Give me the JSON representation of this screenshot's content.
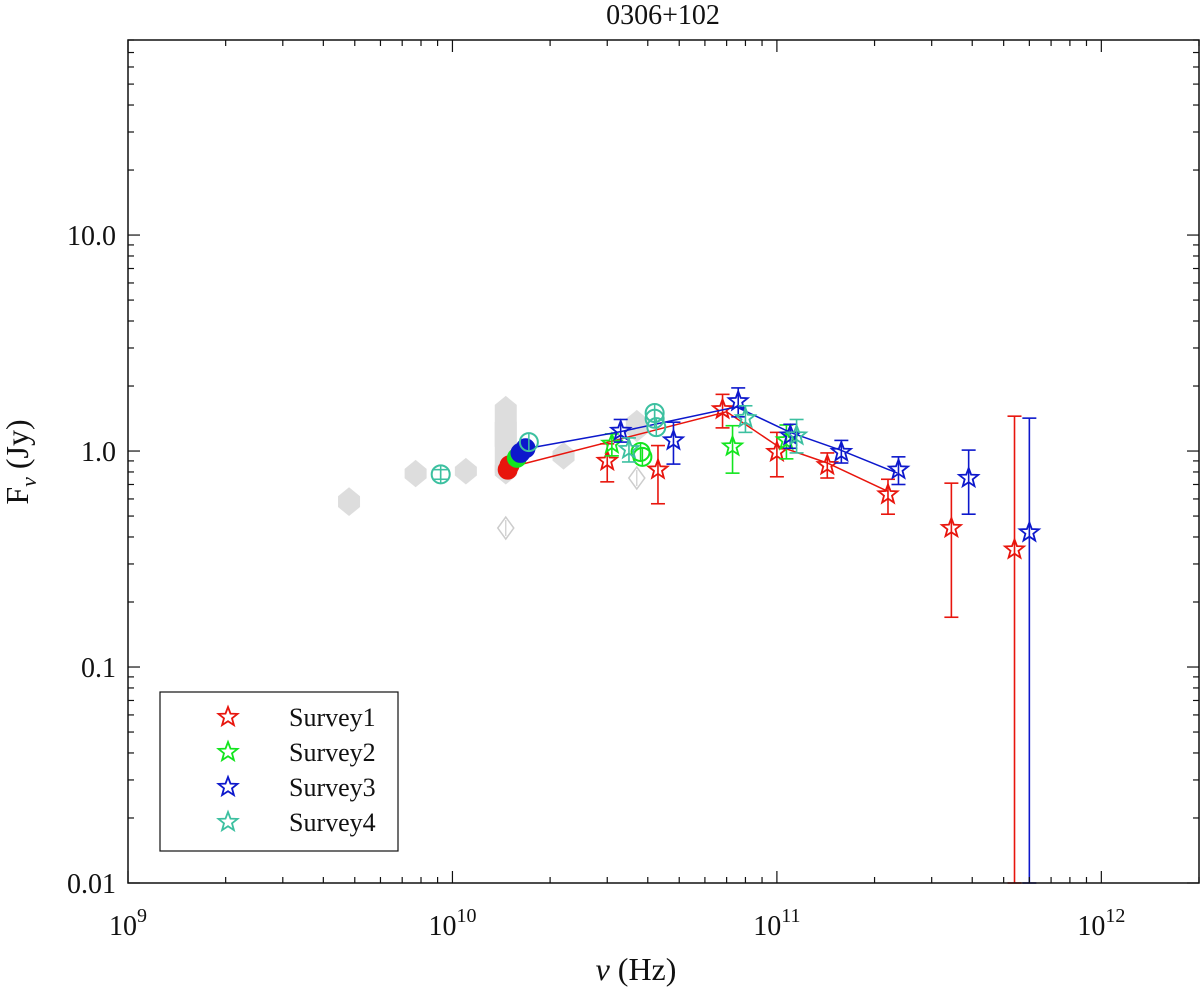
{
  "chart_data": {
    "type": "scatter",
    "title": "0306+102",
    "xlabel_sym": "ν",
    "xlabel_unit": " (Hz)",
    "ylabel_main": "F",
    "ylabel_sub": "ν",
    "ylabel_unit": " (Jy)",
    "xscale": "log",
    "yscale": "log",
    "xlim": [
      1000000000.0,
      2000000000000.0
    ],
    "ylim": [
      0.01,
      80
    ],
    "grid": false,
    "legend_position": "bottom-left",
    "x_ticks": [
      {
        "value": 1000000000.0,
        "base": "10",
        "exp": "9"
      },
      {
        "value": 10000000000.0,
        "base": "10",
        "exp": "10"
      },
      {
        "value": 100000000000.0,
        "base": "10",
        "exp": "11"
      },
      {
        "value": 1000000000000.0,
        "base": "10",
        "exp": "12"
      }
    ],
    "y_ticks": [
      {
        "value": 0.01,
        "label": "0.01"
      },
      {
        "value": 0.1,
        "label": "0.1"
      },
      {
        "value": 1,
        "label": "1.0"
      },
      {
        "value": 10,
        "label": "10.0"
      }
    ],
    "archival": {
      "color": "#dddddd",
      "filled": [
        {
          "x": 4800000000.0,
          "y": 0.6,
          "lo": 0.5,
          "hi": 0.68
        },
        {
          "x": 7700000000.0,
          "y": 0.79,
          "lo": 0.68,
          "hi": 0.91
        },
        {
          "x": 11000000000.0,
          "y": 0.81,
          "lo": 0.7,
          "hi": 0.93
        },
        {
          "x": 14600000000.0,
          "y": 0.98,
          "lo": 0.72,
          "hi": 1.8
        },
        {
          "x": 14600000000.0,
          "y": 1.2,
          "lo": 0.95,
          "hi": 1.5
        },
        {
          "x": 14600000000.0,
          "y": 0.82,
          "lo": 0.7,
          "hi": 0.95
        },
        {
          "x": 22000000000.0,
          "y": 0.97,
          "lo": 0.82,
          "hi": 1.1
        },
        {
          "x": 37000000000.0,
          "y": 1.3,
          "lo": 1.1,
          "hi": 1.55
        }
      ],
      "open": [
        {
          "x": 14600000000.0,
          "y": 0.44
        },
        {
          "x": 37000000000.0,
          "y": 0.75
        }
      ]
    },
    "series": [
      {
        "name": "Survey1",
        "color": "#e8150d",
        "line": [
          [
            15000000000.0,
            0.84
          ],
          [
            70000000000.0,
            1.52
          ],
          [
            100000000000.0,
            1.06
          ],
          [
            143000000000.0,
            0.88
          ],
          [
            220000000000.0,
            0.65
          ]
        ],
        "circles": [
          {
            "x": 14800000000.0,
            "y": 0.82,
            "filled": true
          },
          {
            "x": 15000000000.0,
            "y": 0.86,
            "filled": true
          }
        ],
        "stars": [
          {
            "x": 30000000000.0,
            "y": 0.9,
            "lo": 0.72,
            "hi": 1.08
          },
          {
            "x": 43000000000.0,
            "y": 0.82,
            "lo": 0.57,
            "hi": 1.06
          },
          {
            "x": 68000000000.0,
            "y": 1.56,
            "lo": 1.28,
            "hi": 1.83
          },
          {
            "x": 100000000000.0,
            "y": 0.99,
            "lo": 0.76,
            "hi": 1.22
          },
          {
            "x": 143000000000.0,
            "y": 0.86,
            "lo": 0.75,
            "hi": 0.98
          },
          {
            "x": 220000000000.0,
            "y": 0.63,
            "lo": 0.51,
            "hi": 0.74
          },
          {
            "x": 345000000000.0,
            "y": 0.44,
            "lo": 0.17,
            "hi": 0.71
          },
          {
            "x": 540000000000.0,
            "y": 0.35,
            "lo": 0.01,
            "hi": 1.45
          }
        ]
      },
      {
        "name": "Survey2",
        "color": "#12e51e",
        "line": [],
        "circles": [
          {
            "x": 15800000000.0,
            "y": 0.93,
            "filled": true
          },
          {
            "x": 38000000000.0,
            "y": 0.99,
            "filled": false
          },
          {
            "x": 38500000000.0,
            "y": 0.94,
            "filled": false
          }
        ],
        "stars": [
          {
            "x": 31000000000.0,
            "y": 1.08,
            "lo": 0.95,
            "hi": 1.2
          },
          {
            "x": 73000000000.0,
            "y": 1.05,
            "lo": 0.79,
            "hi": 1.31
          },
          {
            "x": 107000000000.0,
            "y": 1.12,
            "lo": 0.92,
            "hi": 1.32
          }
        ]
      },
      {
        "name": "Survey3",
        "color": "#0d18cc",
        "line": [
          [
            16500000000.0,
            1.02
          ],
          [
            33000000000.0,
            1.23
          ],
          [
            43000000000.0,
            1.34
          ],
          [
            75000000000.0,
            1.6
          ],
          [
            110000000000.0,
            1.22
          ],
          [
            157000000000.0,
            1.01
          ],
          [
            235000000000.0,
            0.79
          ]
        ],
        "circles": [
          {
            "x": 16200000000.0,
            "y": 0.98,
            "filled": true
          },
          {
            "x": 16800000000.0,
            "y": 1.03,
            "filled": true
          }
        ],
        "stars": [
          {
            "x": 33000000000.0,
            "y": 1.24,
            "lo": 1.1,
            "hi": 1.4
          },
          {
            "x": 48000000000.0,
            "y": 1.12,
            "lo": 0.87,
            "hi": 1.36
          },
          {
            "x": 76000000000.0,
            "y": 1.7,
            "lo": 1.44,
            "hi": 1.96
          },
          {
            "x": 110000000000.0,
            "y": 1.18,
            "lo": 1.03,
            "hi": 1.33
          },
          {
            "x": 158000000000.0,
            "y": 0.99,
            "lo": 0.88,
            "hi": 1.12
          },
          {
            "x": 237000000000.0,
            "y": 0.82,
            "lo": 0.7,
            "hi": 0.94
          },
          {
            "x": 390000000000.0,
            "y": 0.75,
            "lo": 0.51,
            "hi": 1.01
          },
          {
            "x": 600000000000.0,
            "y": 0.42,
            "lo": 0.01,
            "hi": 1.42
          }
        ]
      },
      {
        "name": "Survey4",
        "color": "#3cc0a0",
        "line": [],
        "circles": [
          {
            "x": 9200000000.0,
            "y": 0.78,
            "filled": false,
            "lo": 0.74,
            "hi": 0.82
          },
          {
            "x": 17200000000.0,
            "y": 1.1,
            "filled": false
          },
          {
            "x": 42000000000.0,
            "y": 1.5,
            "filled": false
          },
          {
            "x": 42000000000.0,
            "y": 1.41,
            "filled": false
          },
          {
            "x": 42500000000.0,
            "y": 1.29,
            "filled": false
          }
        ],
        "stars": [
          {
            "x": 35000000000.0,
            "y": 1.02,
            "lo": 0.89,
            "hi": 1.15
          },
          {
            "x": 80000000000.0,
            "y": 1.42,
            "lo": 1.22,
            "hi": 1.62
          },
          {
            "x": 115000000000.0,
            "y": 1.18,
            "lo": 0.98,
            "hi": 1.4
          }
        ]
      }
    ]
  }
}
